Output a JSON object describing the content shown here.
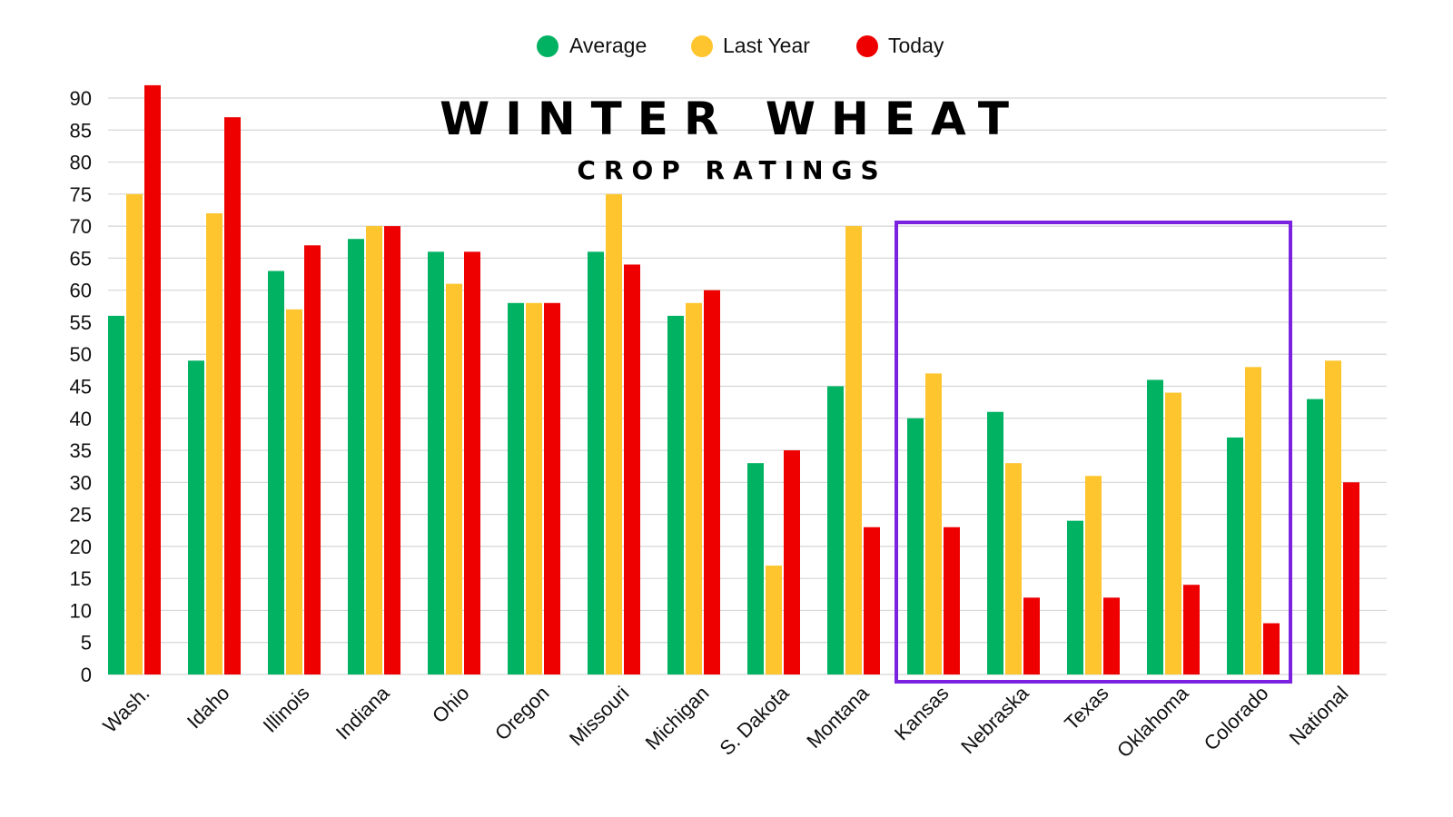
{
  "chart_data": {
    "type": "bar",
    "title": "WINTER WHEAT",
    "subtitle": "CROP RATINGS",
    "xlabel": "",
    "ylabel": "",
    "ylim": [
      0,
      90
    ],
    "yticks": [
      0,
      5,
      10,
      15,
      20,
      25,
      30,
      35,
      40,
      45,
      50,
      55,
      60,
      65,
      70,
      75,
      80,
      85,
      90
    ],
    "grid": true,
    "legend_position": "top-center",
    "categories": [
      "Wash.",
      "Idaho",
      "Illinois",
      "Indiana",
      "Ohio",
      "Oregon",
      "Missouri",
      "Michigan",
      "S. Dakota",
      "Montana",
      "Kansas",
      "Nebraska",
      "Texas",
      "Oklahoma",
      "Colorado",
      "National"
    ],
    "series": [
      {
        "name": "Average",
        "color": "#00b262",
        "values": [
          56,
          49,
          63,
          68,
          66,
          58,
          66,
          56,
          33,
          45,
          40,
          41,
          24,
          46,
          37,
          43
        ]
      },
      {
        "name": "Last Year",
        "color": "#fec52e",
        "values": [
          75,
          72,
          57,
          70,
          61,
          58,
          75,
          58,
          17,
          70,
          47,
          33,
          31,
          44,
          48,
          49
        ]
      },
      {
        "name": "Today",
        "color": "#ee0000",
        "values": [
          92,
          87,
          67,
          70,
          66,
          58,
          64,
          60,
          35,
          23,
          23,
          12,
          12,
          14,
          8,
          30
        ]
      }
    ],
    "highlight": {
      "from_category": "Kansas",
      "to_category": "Colorado",
      "color": "#7b22e0"
    }
  }
}
